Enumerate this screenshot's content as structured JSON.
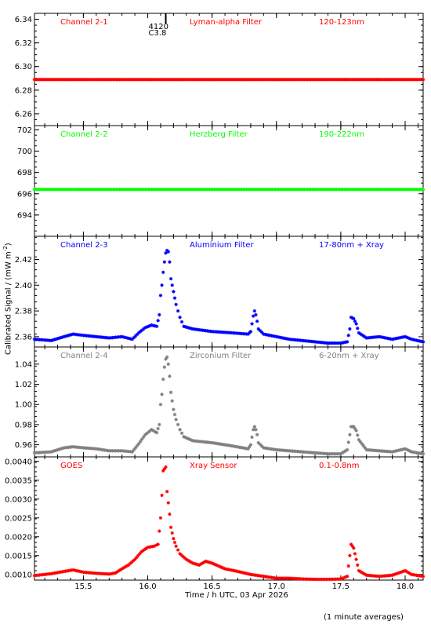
{
  "chart_data": {
    "type": "scatter",
    "xlabel": "Time / h UTC, 03 Apr 2026",
    "ylabel": "Calibrated Signal / (mW m",
    "ylabel_sup": "-2",
    "ylabel_close": ")",
    "footer": "(1 minute averages)",
    "xlim": [
      15.12,
      18.14
    ],
    "xticks": [
      15.5,
      16.0,
      16.5,
      17.0,
      17.5,
      18.0
    ],
    "xtick_labels": [
      "15.5",
      "16.0",
      "16.5",
      "17.0",
      "17.5",
      "18.0"
    ],
    "event_marker": {
      "x": 16.14,
      "label1": "4120",
      "label2": "C3.8"
    },
    "panels": [
      {
        "channel": "Channel 2-1",
        "filter": "Lyman-alpha Filter",
        "band": "120-123nm",
        "color": "#ff0000",
        "ylim": [
          6.25,
          6.345
        ],
        "yticks": [
          6.26,
          6.28,
          6.3,
          6.32,
          6.34
        ],
        "ytick_labels": [
          "6.26",
          "6.28",
          "6.30",
          "6.32",
          "6.34"
        ],
        "points": [
          [
            15.12,
            6.289
          ],
          [
            18.14,
            6.289
          ]
        ]
      },
      {
        "channel": "Channel 2-2",
        "filter": "Herzberg Filter",
        "band": "190-222nm",
        "color": "#00ff00",
        "ylim": [
          692.0,
          702.4
        ],
        "yticks": [
          694,
          696,
          698,
          700,
          702
        ],
        "ytick_labels": [
          "694",
          "696",
          "698",
          "700",
          "702"
        ],
        "points": [
          [
            15.12,
            696.4
          ],
          [
            18.14,
            696.4
          ]
        ]
      },
      {
        "channel": "Channel 2-3",
        "filter": "Aluminium Filter",
        "band": "17-80nm + Xray",
        "color": "#0000ff",
        "ylim": [
          2.352,
          2.438
        ],
        "yticks": [
          2.36,
          2.38,
          2.4,
          2.42
        ],
        "ytick_labels": [
          "2.36",
          "2.38",
          "2.40",
          "2.42"
        ],
        "points": [
          [
            15.12,
            2.358
          ],
          [
            15.25,
            2.357
          ],
          [
            15.35,
            2.36
          ],
          [
            15.42,
            2.362
          ],
          [
            15.5,
            2.361
          ],
          [
            15.6,
            2.36
          ],
          [
            15.7,
            2.359
          ],
          [
            15.8,
            2.36
          ],
          [
            15.88,
            2.358
          ],
          [
            15.93,
            2.363
          ],
          [
            15.98,
            2.367
          ],
          [
            16.03,
            2.369
          ],
          [
            16.07,
            2.368
          ],
          [
            16.09,
            2.377
          ],
          [
            16.1,
            2.392
          ],
          [
            16.11,
            2.4
          ],
          [
            16.12,
            2.41
          ],
          [
            16.13,
            2.418
          ],
          [
            16.14,
            2.425
          ],
          [
            16.15,
            2.427
          ],
          [
            16.16,
            2.426
          ],
          [
            16.17,
            2.418
          ],
          [
            16.18,
            2.405
          ],
          [
            16.2,
            2.395
          ],
          [
            16.22,
            2.385
          ],
          [
            16.25,
            2.375
          ],
          [
            16.28,
            2.368
          ],
          [
            16.35,
            2.366
          ],
          [
            16.5,
            2.364
          ],
          [
            16.65,
            2.363
          ],
          [
            16.78,
            2.362
          ],
          [
            16.8,
            2.364
          ],
          [
            16.82,
            2.376
          ],
          [
            16.83,
            2.38
          ],
          [
            16.84,
            2.377
          ],
          [
            16.85,
            2.372
          ],
          [
            16.86,
            2.366
          ],
          [
            16.9,
            2.362
          ],
          [
            17.0,
            2.36
          ],
          [
            17.1,
            2.358
          ],
          [
            17.2,
            2.357
          ],
          [
            17.3,
            2.356
          ],
          [
            17.4,
            2.355
          ],
          [
            17.5,
            2.355
          ],
          [
            17.55,
            2.356
          ],
          [
            17.57,
            2.366
          ],
          [
            17.58,
            2.375
          ],
          [
            17.6,
            2.374
          ],
          [
            17.62,
            2.37
          ],
          [
            17.64,
            2.363
          ],
          [
            17.7,
            2.359
          ],
          [
            17.8,
            2.36
          ],
          [
            17.9,
            2.358
          ],
          [
            18.0,
            2.36
          ],
          [
            18.05,
            2.358
          ],
          [
            18.14,
            2.356
          ]
        ]
      },
      {
        "channel": "Channel 2-4",
        "filter": "Zirconium Filter",
        "band": "6-20nm + Xray",
        "color": "#808080",
        "ylim": [
          0.948,
          1.057
        ],
        "yticks": [
          0.96,
          0.98,
          1.0,
          1.02,
          1.04
        ],
        "ytick_labels": [
          "0.96",
          "0.98",
          "1.00",
          "1.02",
          "1.04"
        ],
        "points": [
          [
            15.12,
            0.952
          ],
          [
            15.25,
            0.953
          ],
          [
            15.35,
            0.957
          ],
          [
            15.42,
            0.958
          ],
          [
            15.5,
            0.957
          ],
          [
            15.6,
            0.956
          ],
          [
            15.7,
            0.954
          ],
          [
            15.8,
            0.954
          ],
          [
            15.88,
            0.953
          ],
          [
            15.93,
            0.961
          ],
          [
            15.98,
            0.97
          ],
          [
            16.03,
            0.975
          ],
          [
            16.07,
            0.972
          ],
          [
            16.09,
            0.98
          ],
          [
            16.1,
            1.0
          ],
          [
            16.11,
            1.01
          ],
          [
            16.12,
            1.025
          ],
          [
            16.13,
            1.037
          ],
          [
            16.14,
            1.045
          ],
          [
            16.15,
            1.047
          ],
          [
            16.16,
            1.04
          ],
          [
            16.17,
            1.028
          ],
          [
            16.18,
            1.012
          ],
          [
            16.2,
            0.995
          ],
          [
            16.22,
            0.985
          ],
          [
            16.25,
            0.975
          ],
          [
            16.28,
            0.968
          ],
          [
            16.35,
            0.964
          ],
          [
            16.5,
            0.962
          ],
          [
            16.65,
            0.959
          ],
          [
            16.78,
            0.956
          ],
          [
            16.8,
            0.96
          ],
          [
            16.82,
            0.975
          ],
          [
            16.83,
            0.978
          ],
          [
            16.84,
            0.975
          ],
          [
            16.85,
            0.97
          ],
          [
            16.86,
            0.962
          ],
          [
            16.9,
            0.957
          ],
          [
            17.0,
            0.955
          ],
          [
            17.1,
            0.954
          ],
          [
            17.2,
            0.953
          ],
          [
            17.3,
            0.952
          ],
          [
            17.4,
            0.951
          ],
          [
            17.5,
            0.951
          ],
          [
            17.55,
            0.955
          ],
          [
            17.57,
            0.97
          ],
          [
            17.58,
            0.978
          ],
          [
            17.6,
            0.978
          ],
          [
            17.62,
            0.974
          ],
          [
            17.64,
            0.965
          ],
          [
            17.7,
            0.955
          ],
          [
            17.8,
            0.954
          ],
          [
            17.9,
            0.953
          ],
          [
            18.0,
            0.956
          ],
          [
            18.05,
            0.953
          ],
          [
            18.14,
            0.951
          ]
        ]
      },
      {
        "channel": "GOES",
        "filter": "Xray Sensor",
        "band": "0.1-0.8nm",
        "color": "#ff0000",
        "ylim": [
          0.00085,
          0.00412
        ],
        "yticks": [
          0.001,
          0.0015,
          0.002,
          0.0025,
          0.003,
          0.0035,
          0.004
        ],
        "ytick_labels": [
          "0.0010",
          "0.0015",
          "0.0020",
          "0.0025",
          "0.0030",
          "0.0035",
          "0.0040"
        ],
        "points": [
          [
            15.12,
            0.00097
          ],
          [
            15.25,
            0.00102
          ],
          [
            15.35,
            0.00108
          ],
          [
            15.42,
            0.00112
          ],
          [
            15.5,
            0.00106
          ],
          [
            15.6,
            0.00103
          ],
          [
            15.7,
            0.00101
          ],
          [
            15.75,
            0.00104
          ],
          [
            15.8,
            0.00115
          ],
          [
            15.85,
            0.00125
          ],
          [
            15.9,
            0.0014
          ],
          [
            15.95,
            0.0016
          ],
          [
            16.0,
            0.00172
          ],
          [
            16.05,
            0.00175
          ],
          [
            16.08,
            0.0018
          ],
          [
            16.1,
            0.0025
          ],
          [
            16.11,
            0.0031
          ],
          [
            16.12,
            0.00375
          ],
          [
            16.13,
            0.0038
          ],
          [
            16.14,
            0.00385
          ],
          [
            16.15,
            0.0032
          ],
          [
            16.16,
            0.0029
          ],
          [
            16.17,
            0.0026
          ],
          [
            16.18,
            0.00225
          ],
          [
            16.2,
            0.00195
          ],
          [
            16.22,
            0.00175
          ],
          [
            16.25,
            0.00155
          ],
          [
            16.3,
            0.0014
          ],
          [
            16.35,
            0.0013
          ],
          [
            16.4,
            0.00125
          ],
          [
            16.45,
            0.00135
          ],
          [
            16.5,
            0.0013
          ],
          [
            16.6,
            0.00115
          ],
          [
            16.7,
            0.00108
          ],
          [
            16.8,
            0.001
          ],
          [
            16.9,
            0.00095
          ],
          [
            17.0,
            0.0009
          ],
          [
            17.1,
            0.0009
          ],
          [
            17.2,
            0.00088
          ],
          [
            17.3,
            0.00087
          ],
          [
            17.4,
            0.00087
          ],
          [
            17.5,
            0.00088
          ],
          [
            17.55,
            0.00095
          ],
          [
            17.57,
            0.0015
          ],
          [
            17.58,
            0.0018
          ],
          [
            17.6,
            0.0017
          ],
          [
            17.62,
            0.0014
          ],
          [
            17.64,
            0.0011
          ],
          [
            17.7,
            0.00098
          ],
          [
            17.8,
            0.00095
          ],
          [
            17.9,
            0.00098
          ],
          [
            18.0,
            0.0011
          ],
          [
            18.05,
            0.001
          ],
          [
            18.14,
            0.00095
          ]
        ]
      }
    ]
  }
}
